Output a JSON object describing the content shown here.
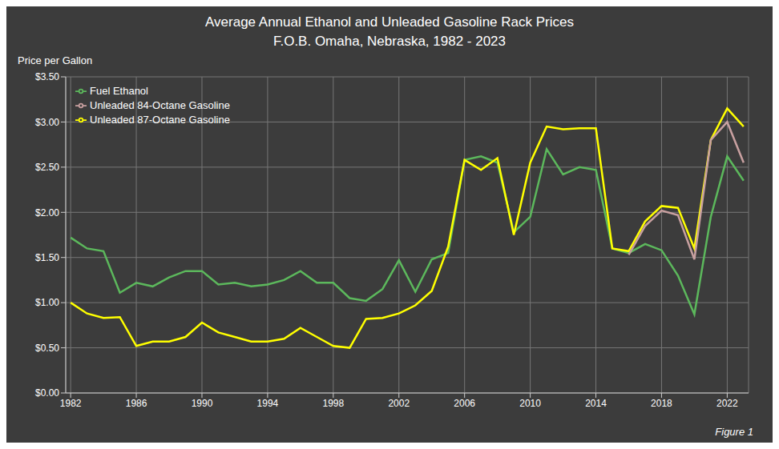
{
  "chart_data": {
    "type": "line",
    "title": "Average Annual Ethanol and Unleaded Gasoline Rack Prices",
    "subtitle": "F.O.B. Omaha, Nebraska, 1982 - 2023",
    "y_label": "Price per Gallon",
    "annotation": "Figure 1",
    "x": [
      1982,
      1983,
      1984,
      1985,
      1986,
      1987,
      1988,
      1989,
      1990,
      1991,
      1992,
      1993,
      1994,
      1995,
      1996,
      1997,
      1998,
      1999,
      2000,
      2001,
      2002,
      2003,
      2004,
      2005,
      2006,
      2007,
      2008,
      2009,
      2010,
      2011,
      2012,
      2013,
      2014,
      2015,
      2016,
      2017,
      2018,
      2019,
      2020,
      2021,
      2022,
      2023
    ],
    "series": [
      {
        "name": "Fuel Ethanol",
        "color": "#5cb85c",
        "values": [
          1.72,
          1.6,
          1.57,
          1.11,
          1.22,
          1.18,
          1.28,
          1.35,
          1.35,
          1.2,
          1.22,
          1.18,
          1.2,
          1.25,
          1.35,
          1.22,
          1.22,
          1.05,
          1.02,
          1.15,
          1.47,
          1.12,
          1.48,
          1.55,
          2.58,
          2.62,
          2.55,
          1.78,
          1.95,
          2.7,
          2.42,
          2.5,
          2.47,
          1.6,
          1.55,
          1.65,
          1.58,
          1.3,
          0.87,
          1.95,
          2.62,
          2.35
        ]
      },
      {
        "name": "Unleaded 87-Octane Gasoline",
        "color": "#ffff00",
        "values": [
          1.0,
          0.88,
          0.83,
          0.84,
          0.52,
          0.57,
          0.57,
          0.62,
          0.78,
          0.67,
          0.62,
          0.57,
          0.57,
          0.6,
          0.72,
          0.62,
          0.52,
          0.5,
          0.82,
          0.83,
          0.88,
          0.97,
          1.13,
          1.62,
          2.58,
          2.47,
          2.6,
          1.75,
          2.55,
          2.95,
          2.92,
          2.93,
          2.93,
          1.6,
          1.57,
          1.9,
          2.07,
          2.05,
          1.6,
          2.8,
          3.15,
          2.95
        ]
      },
      {
        "name": "Unleaded 84-Octane Gasoline",
        "color": "#c8a0a0",
        "values": [
          null,
          null,
          null,
          null,
          null,
          null,
          null,
          null,
          null,
          null,
          null,
          null,
          null,
          null,
          null,
          null,
          null,
          null,
          null,
          null,
          null,
          null,
          null,
          null,
          null,
          null,
          null,
          null,
          null,
          null,
          null,
          null,
          null,
          null,
          1.53,
          1.85,
          2.02,
          1.97,
          1.48,
          2.8,
          3.0,
          2.55
        ]
      }
    ],
    "xlim": [
      1981.7,
      2023.3
    ],
    "xticks": [
      1982,
      1986,
      1990,
      1994,
      1998,
      2002,
      2006,
      2010,
      2014,
      2018,
      2022
    ],
    "ylim": [
      0.0,
      3.5
    ],
    "yticks": [
      {
        "value": 0.0,
        "label": "$0.00"
      },
      {
        "value": 0.5,
        "label": "$0.50"
      },
      {
        "value": 1.0,
        "label": "$1.00"
      },
      {
        "value": 1.5,
        "label": "$1.50"
      },
      {
        "value": 2.0,
        "label": "$2.00"
      },
      {
        "value": 2.5,
        "label": "$2.50"
      },
      {
        "value": 3.0,
        "label": "$3.00"
      },
      {
        "value": 3.5,
        "label": "$3.50"
      }
    ],
    "grid": true,
    "legend": "upper left"
  }
}
